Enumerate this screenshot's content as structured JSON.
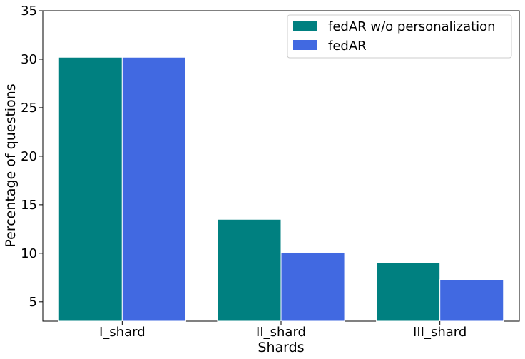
{
  "chart_data": {
    "type": "bar",
    "title": "",
    "xlabel": "Shards",
    "ylabel": "Percentage of questions",
    "categories": [
      "I_shard",
      "II_shard",
      "III_shard"
    ],
    "series": [
      {
        "name": "fedAR w/o personalization",
        "values": [
          30.2,
          13.5,
          9.0
        ],
        "color": "#008080"
      },
      {
        "name": "fedAR",
        "values": [
          30.2,
          10.1,
          7.3
        ],
        "color": "#4169E1"
      }
    ],
    "ylim": [
      3,
      35
    ],
    "yticks": [
      5,
      10,
      15,
      20,
      25,
      30,
      35
    ],
    "grid": false,
    "legend_position": "top-right"
  }
}
